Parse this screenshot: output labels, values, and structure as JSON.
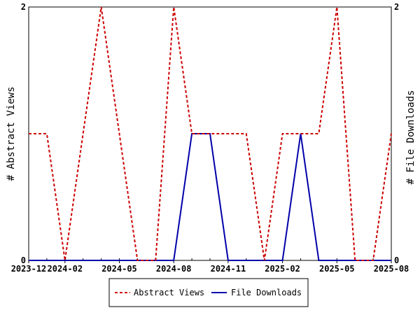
{
  "chart_data": {
    "type": "line",
    "x": [
      "2023-12",
      "2024-01",
      "2024-02",
      "2024-03",
      "2024-04",
      "2024-05",
      "2024-06",
      "2024-07",
      "2024-08",
      "2024-09",
      "2024-10",
      "2024-11",
      "2024-12",
      "2025-01",
      "2025-02",
      "2025-03",
      "2025-04",
      "2025-05",
      "2025-06",
      "2025-07",
      "2025-08"
    ],
    "x_ticks": [
      "2023-12",
      "2024-02",
      "2024-05",
      "2024-08",
      "2024-11",
      "2025-02",
      "2025-05",
      "2025-08"
    ],
    "x_tick_index": [
      0,
      2,
      5,
      8,
      11,
      14,
      17,
      20
    ],
    "series": [
      {
        "name": "Abstract Views",
        "axis": "left",
        "color": "#cc0000",
        "dash": "dashed",
        "values": [
          1,
          1,
          0,
          1,
          2,
          1,
          0,
          0,
          2,
          1,
          1,
          1,
          1,
          0,
          1,
          1,
          1,
          2,
          0,
          0,
          1
        ]
      },
      {
        "name": "File Downloads",
        "axis": "right",
        "color": "#0000aa",
        "dash": "solid",
        "values": [
          0,
          0,
          0,
          0,
          0,
          0,
          0,
          0,
          0,
          1,
          1,
          0,
          0,
          0,
          0,
          1,
          0,
          0,
          0,
          0,
          0
        ]
      }
    ],
    "ylabel_left": "# Abstract Views",
    "ylabel_right": "# File Downloads",
    "ylim": [
      0,
      2
    ],
    "y_ticks": [
      "0",
      "2"
    ],
    "grid": false,
    "legend_position": "bottom-center"
  }
}
